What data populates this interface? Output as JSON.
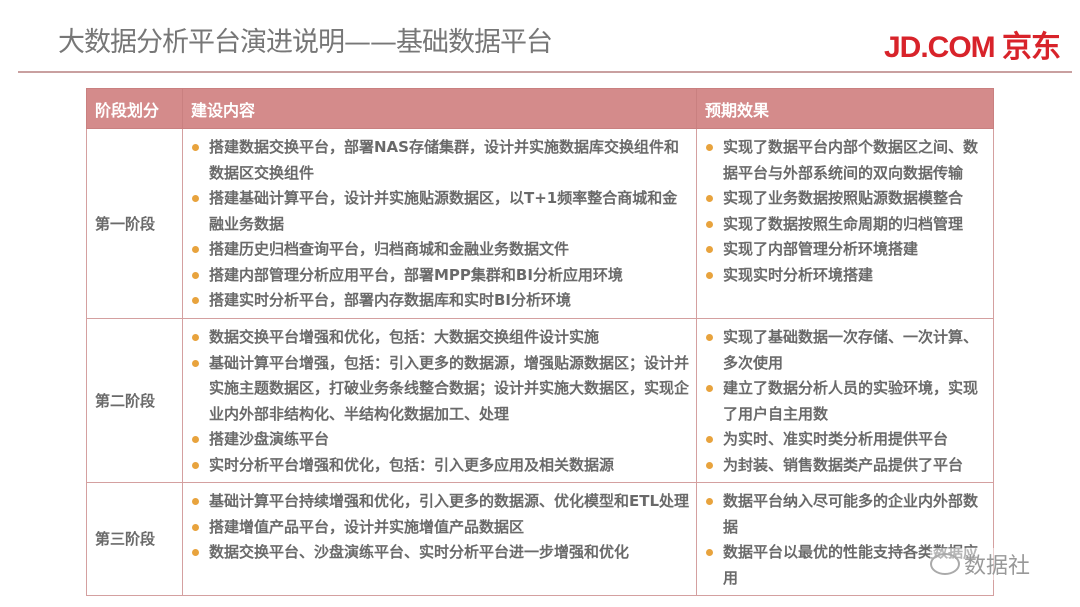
{
  "header": {
    "title": "大数据分析平台演进说明——基础数据平台",
    "logo": "JD.COM 京东"
  },
  "table": {
    "columns": [
      "阶段划分",
      "建设内容",
      "预期效果"
    ],
    "rows": [
      {
        "stage": "第一阶段",
        "content": [
          "搭建数据交换平台，部署NAS存储集群，设计并实施数据库交换组件和数据区交换组件",
          "搭建基础计算平台，设计并实施贴源数据区，以T+1频率整合商城和金融业务数据",
          "搭建历史归档查询平台，归档商城和金融业务数据文件",
          "搭建内部管理分析应用平台，部署MPP集群和BI分析应用环境",
          "搭建实时分析平台，部署内存数据库和实时BI分析环境"
        ],
        "effects": [
          "实现了数据平台内部个数据区之间、数据平台与外部系统间的双向数据传输",
          "实现了业务数据按照贴源数据模整合",
          "实现了数据按照生命周期的归档管理",
          "实现了内部管理分析环境搭建",
          "实现实时分析环境搭建"
        ]
      },
      {
        "stage": "第二阶段",
        "content": [
          "数据交换平台增强和优化，包括：大数据交换组件设计实施",
          "基础计算平台增强，包括：引入更多的数据源，增强贴源数据区；设计并实施主题数据区，打破业务条线整合数据；设计并实施大数据区，实现企业内外部非结构化、半结构化数据加工、处理",
          "搭建沙盘演练平台",
          "实时分析平台增强和优化，包括：引入更多应用及相关数据源"
        ],
        "effects": [
          "实现了基础数据一次存储、一次计算、多次使用",
          "建立了数据分析人员的实验环境，实现了用户自主用数",
          "为实时、准实时类分析用提供平台",
          "为封装、销售数据类产品提供了平台"
        ]
      },
      {
        "stage": "第三阶段",
        "content": [
          "基础计算平台持续增强和优化，引入更多的数据源、优化模型和ETL处理",
          "搭建增值产品平台，设计并实施增值产品数据区",
          "数据交换平台、沙盘演练平台、实时分析平台进一步增强和优化"
        ],
        "effects": [
          "数据平台纳入尽可能多的企业内外部数据",
          "数据平台以最优的性能支持各类数据应用"
        ]
      }
    ]
  },
  "watermark": "数据社",
  "colors": {
    "header_bg": "#d48b8b",
    "bullet": "#e8a33d",
    "logo": "#d8232a"
  }
}
